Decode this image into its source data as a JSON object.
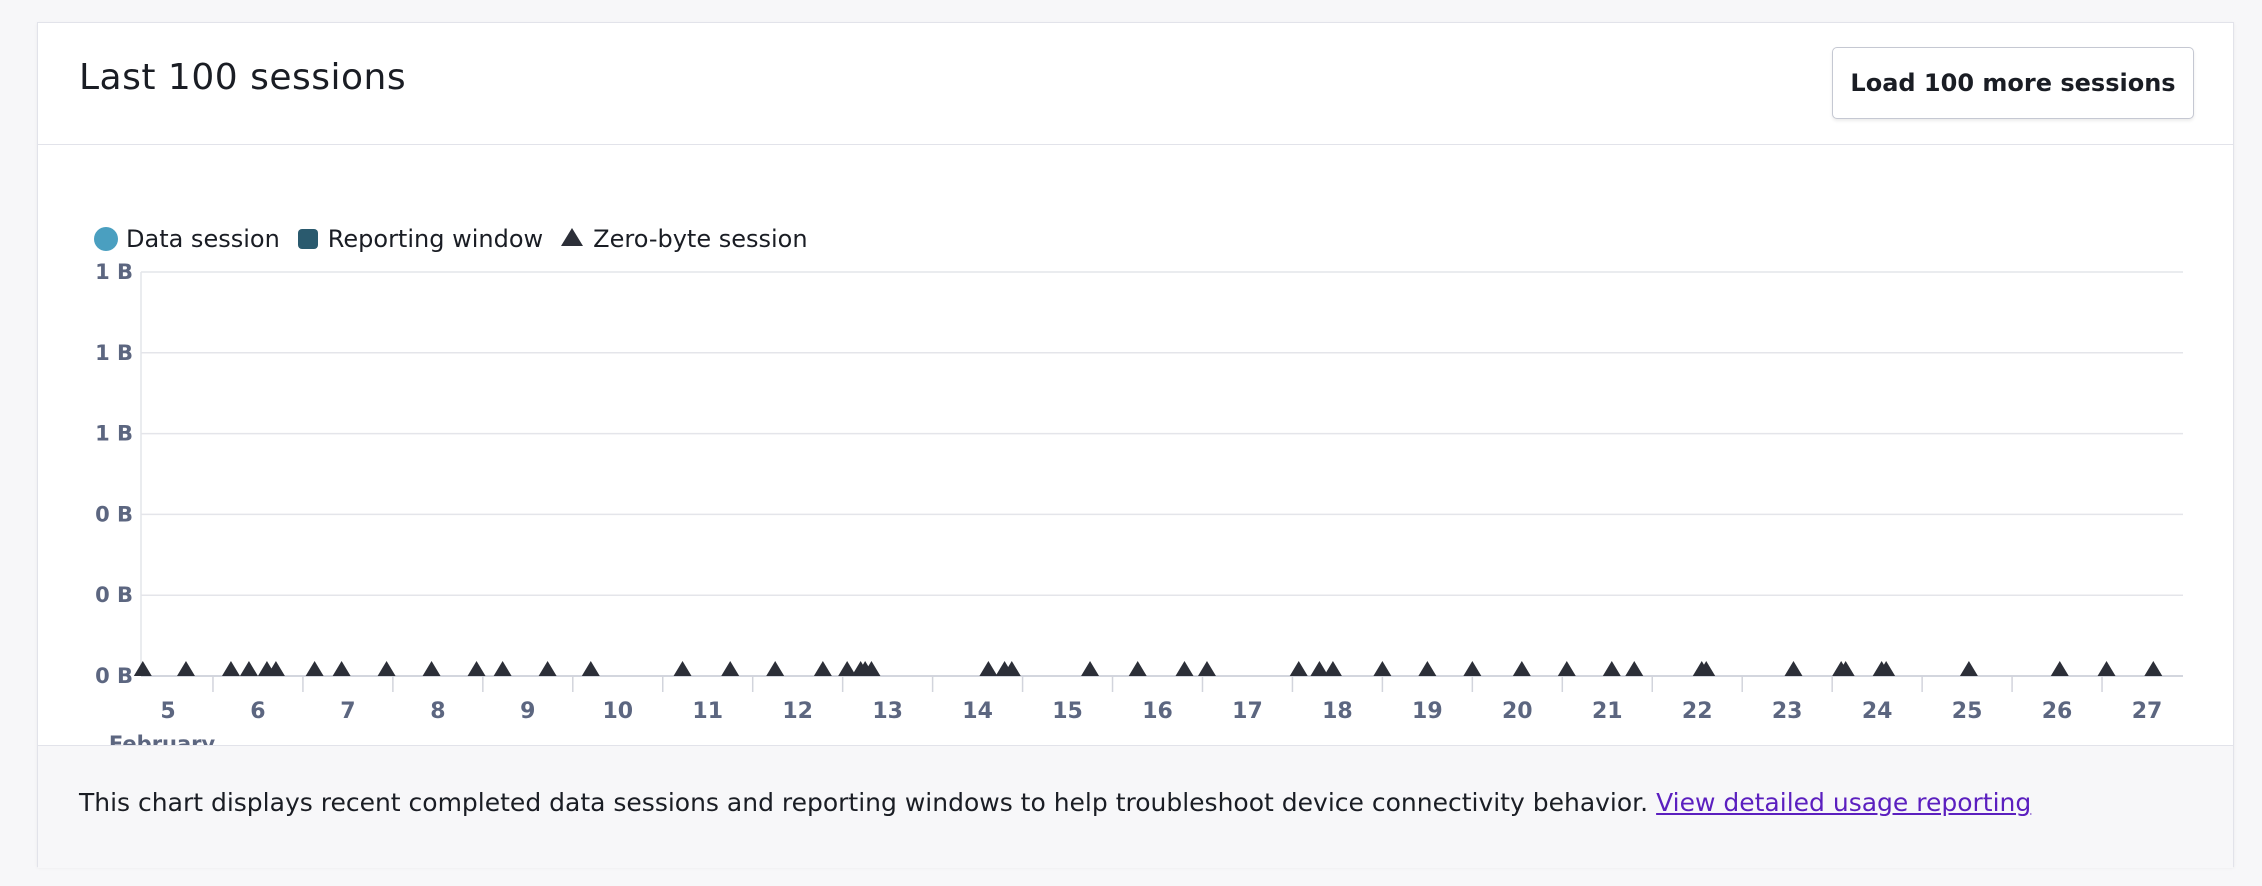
{
  "header": {
    "title": "Last 100 sessions",
    "load_more_label": "Load 100 more sessions"
  },
  "legend": {
    "data_session": "Data session",
    "reporting_window": "Reporting window",
    "zero_byte_session": "Zero-byte session"
  },
  "colors": {
    "data_session": "#4a9fc0",
    "reporting_window": "#2a5a6e",
    "zero_byte_session": "#2c2f38",
    "grid": "#e4e5ea",
    "axis_text": "#5c6680",
    "link": "#5b1fbf"
  },
  "chart_data": {
    "type": "scatter",
    "legend_placement": "top-left",
    "grid": true,
    "y_tick_labels": [
      "1 B",
      "1 B",
      "1 B",
      "0 B",
      "0 B",
      "0 B"
    ],
    "x_month_label": "...February",
    "x_tick_days": [
      5,
      6,
      7,
      8,
      9,
      10,
      11,
      12,
      13,
      14,
      15,
      16,
      17,
      18,
      19,
      20,
      21,
      22,
      23,
      24,
      25,
      26,
      27
    ],
    "xlim_days": [
      4.7,
      27.4
    ],
    "series": [
      {
        "name": "Data session",
        "points": []
      },
      {
        "name": "Reporting window",
        "points": []
      },
      {
        "name": "Zero-byte session",
        "y": 0,
        "x_days": [
          4.72,
          5.2,
          5.7,
          5.9,
          6.1,
          6.2,
          6.63,
          6.93,
          7.43,
          7.93,
          8.43,
          8.72,
          9.22,
          9.7,
          10.72,
          11.25,
          11.75,
          12.28,
          12.55,
          12.7,
          12.75,
          12.82,
          14.12,
          14.3,
          14.38,
          15.25,
          15.78,
          16.3,
          16.55,
          17.57,
          17.8,
          17.95,
          18.5,
          19.0,
          19.5,
          20.05,
          20.55,
          21.05,
          21.3,
          22.05,
          22.1,
          23.07,
          23.6,
          23.65,
          24.05,
          24.1,
          25.02,
          26.03,
          26.55,
          27.07
        ]
      }
    ]
  },
  "footer": {
    "text": "This chart displays recent completed data sessions and reporting windows to help troubleshoot device connectivity behavior.",
    "link_label": "View detailed usage reporting"
  }
}
